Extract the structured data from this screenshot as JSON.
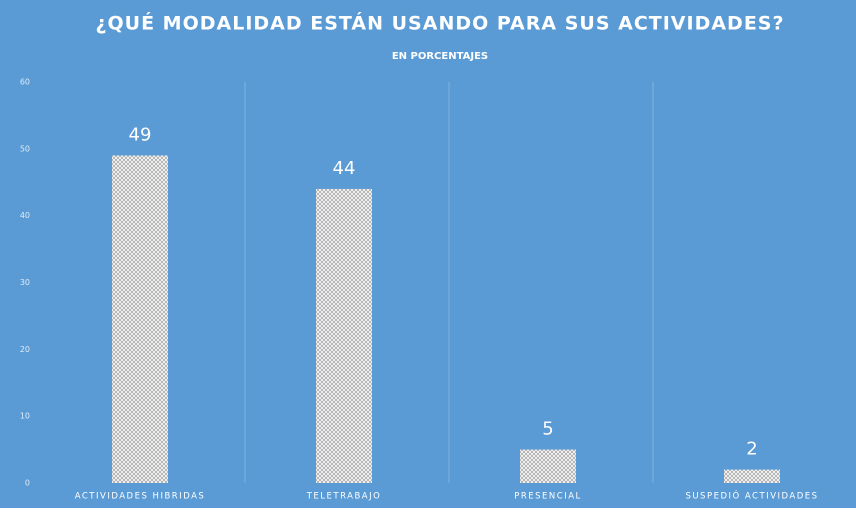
{
  "chart_data": {
    "type": "bar",
    "title": "¿QUÉ MODALIDAD ESTÁN USANDO PARA SUS ACTIVIDADES?",
    "subtitle": "EN PORCENTAJES",
    "categories": [
      "ACTIVIDADES HIBRIDAS",
      "TELETRABAJO",
      "PRESENCIAL",
      "SUSPEDIÓ ACTIVIDADES"
    ],
    "values": [
      49,
      44,
      5,
      2
    ],
    "color": "#e8e8e8",
    "ylim": [
      0,
      60
    ],
    "yticks": [
      0,
      10,
      20,
      30,
      40,
      50,
      60
    ],
    "grid": false
  }
}
